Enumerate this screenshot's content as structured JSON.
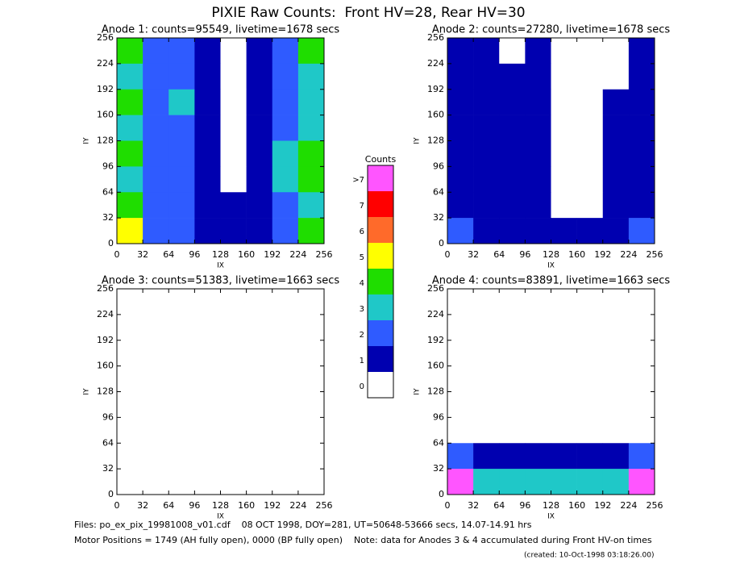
{
  "title": "PIXIE Raw Counts:  Front HV=28, Rear HV=30",
  "chart_data": [
    {
      "type": "heatmap",
      "title": "Anode 1: counts=95549, livetime=1678 secs",
      "x_label": "IX",
      "y_label": "IY",
      "xlim": [
        0,
        256
      ],
      "ylim": [
        0,
        256
      ],
      "xticks": [
        0,
        32,
        64,
        96,
        128,
        160,
        192,
        224,
        256
      ],
      "yticks": [
        0,
        32,
        64,
        96,
        128,
        160,
        192,
        224,
        256
      ],
      "values": [
        [
          4,
          2,
          2,
          1,
          0,
          1,
          2,
          4
        ],
        [
          3,
          2,
          2,
          1,
          0,
          1,
          2,
          3
        ],
        [
          4,
          2,
          3,
          1,
          0,
          1,
          2,
          3
        ],
        [
          3,
          2,
          2,
          1,
          0,
          1,
          2,
          3
        ],
        [
          4,
          2,
          2,
          1,
          0,
          1,
          3,
          4
        ],
        [
          3,
          2,
          2,
          1,
          0,
          1,
          3,
          4
        ],
        [
          4,
          2,
          2,
          1,
          1,
          1,
          2,
          3
        ],
        [
          5,
          2,
          2,
          1,
          1,
          1,
          2,
          4
        ]
      ]
    },
    {
      "type": "heatmap",
      "title": "Anode 2: counts=27280, livetime=1678 secs",
      "x_label": "IX",
      "y_label": "IY",
      "xlim": [
        0,
        256
      ],
      "ylim": [
        0,
        256
      ],
      "xticks": [
        0,
        32,
        64,
        96,
        128,
        160,
        192,
        224,
        256
      ],
      "yticks": [
        0,
        32,
        64,
        96,
        128,
        160,
        192,
        224,
        256
      ],
      "values": [
        [
          1,
          1,
          0,
          1,
          0,
          0,
          0,
          1
        ],
        [
          1,
          1,
          1,
          1,
          0,
          0,
          0,
          1
        ],
        [
          1,
          1,
          1,
          1,
          0,
          0,
          1,
          1
        ],
        [
          1,
          1,
          1,
          1,
          0,
          0,
          1,
          1
        ],
        [
          1,
          1,
          1,
          1,
          0,
          0,
          1,
          1
        ],
        [
          1,
          1,
          1,
          1,
          0,
          0,
          1,
          1
        ],
        [
          1,
          1,
          1,
          1,
          0,
          0,
          1,
          1
        ],
        [
          2,
          1,
          1,
          1,
          1,
          1,
          1,
          2
        ]
      ]
    },
    {
      "type": "heatmap",
      "title": "Anode 3: counts=51383, livetime=1663 secs",
      "x_label": "IX",
      "y_label": "IY",
      "xlim": [
        0,
        256
      ],
      "ylim": [
        0,
        256
      ],
      "xticks": [
        0,
        32,
        64,
        96,
        128,
        160,
        192,
        224,
        256
      ],
      "yticks": [
        0,
        32,
        64,
        96,
        128,
        160,
        192,
        224,
        256
      ],
      "values": [
        [
          0,
          0,
          0,
          0,
          0,
          0,
          0,
          0
        ],
        [
          0,
          0,
          0,
          0,
          0,
          0,
          0,
          0
        ],
        [
          0,
          0,
          0,
          0,
          0,
          0,
          0,
          0
        ],
        [
          0,
          0,
          0,
          0,
          0,
          0,
          0,
          0
        ],
        [
          0,
          0,
          0,
          0,
          0,
          0,
          0,
          0
        ],
        [
          0,
          0,
          0,
          0,
          0,
          0,
          0,
          0
        ],
        [
          0,
          0,
          0,
          0,
          0,
          0,
          0,
          0
        ],
        [
          0,
          0,
          0,
          0,
          0,
          0,
          0,
          0
        ]
      ]
    },
    {
      "type": "heatmap",
      "title": "Anode 4: counts=83891, livetime=1663 secs",
      "x_label": "IX",
      "y_label": "IY",
      "xlim": [
        0,
        256
      ],
      "ylim": [
        0,
        256
      ],
      "xticks": [
        0,
        32,
        64,
        96,
        128,
        160,
        192,
        224,
        256
      ],
      "yticks": [
        0,
        32,
        64,
        96,
        128,
        160,
        192,
        224,
        256
      ],
      "values": [
        [
          0,
          0,
          0,
          0,
          0,
          0,
          0,
          0
        ],
        [
          0,
          0,
          0,
          0,
          0,
          0,
          0,
          0
        ],
        [
          0,
          0,
          0,
          0,
          0,
          0,
          0,
          0
        ],
        [
          0,
          0,
          0,
          0,
          0,
          0,
          0,
          0
        ],
        [
          0,
          0,
          0,
          0,
          0,
          0,
          0,
          0
        ],
        [
          0,
          0,
          0,
          0,
          0,
          0,
          0,
          0
        ],
        [
          2,
          1,
          1,
          1,
          1,
          1,
          1,
          2
        ],
        [
          8,
          3,
          3,
          3,
          3,
          3,
          3,
          8
        ]
      ]
    }
  ],
  "colorbar": {
    "title": "Counts",
    "labels": [
      "0",
      "1",
      "2",
      "3",
      "4",
      "5",
      "6",
      "7",
      ">7"
    ],
    "colors": [
      "#ffffff",
      "#0000b0",
      "#2f5bff",
      "#1fc8c8",
      "#1fdd00",
      "#ffff00",
      "#ff6a2a",
      "#ff0000",
      "#ff55ff"
    ]
  },
  "footer": [
    "Files: po_ex_pix_19981008_v01.cdf    08 OCT 1998, DOY=281, UT=50648-53666 secs, 14.07-14.91 hrs",
    "Motor Positions = 1749 (AH fully open), 0000 (BP fully open)    Note: data for Anodes 3 & 4 accumulated during Front HV-on times",
    "(created: 10-Oct-1998 03:18:26.00)"
  ]
}
